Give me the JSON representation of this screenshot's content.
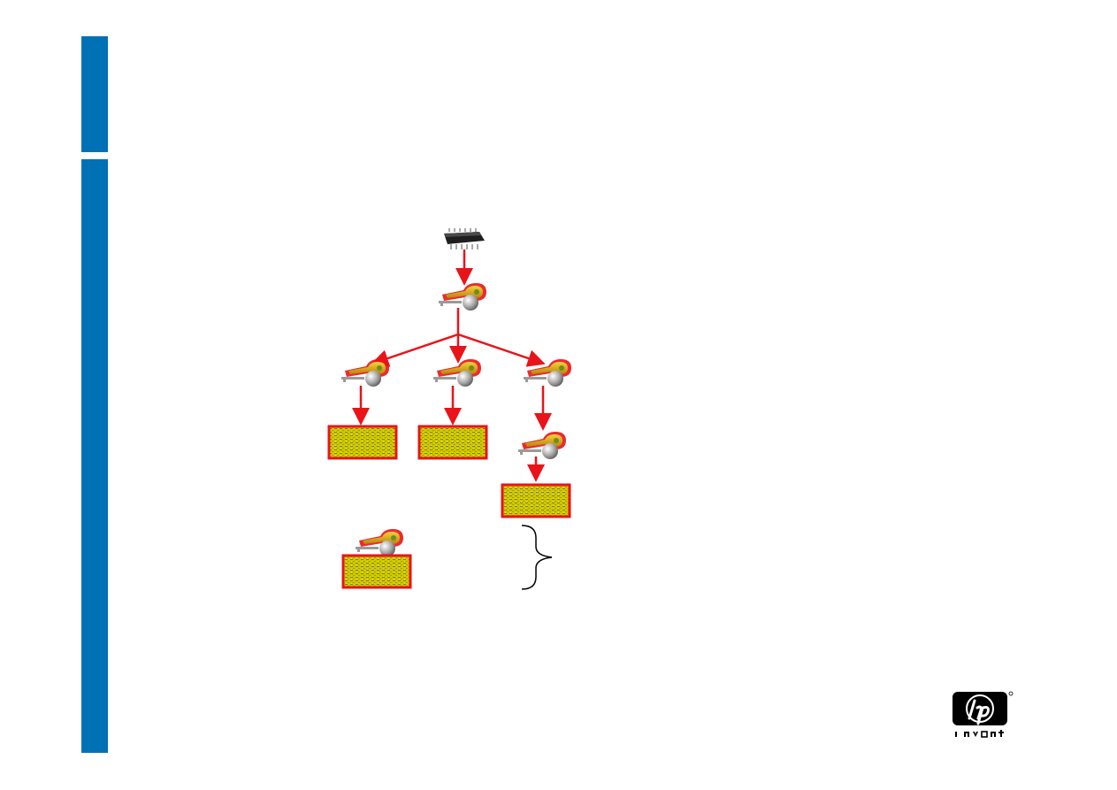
{
  "slide": {
    "accent_color": "#0071b5",
    "arrow_color": "#e8141a",
    "box_fill_color": "#c9c400",
    "box_border_color": "#e8141a"
  },
  "diagram": {
    "nodes": [
      {
        "id": "root-chip",
        "icon": "chip-icon"
      },
      {
        "id": "root-key",
        "icon": "key-icon"
      },
      {
        "id": "key-left",
        "icon": "key-icon"
      },
      {
        "id": "key-middle",
        "icon": "key-icon"
      },
      {
        "id": "key-right",
        "icon": "key-icon"
      },
      {
        "id": "key-right-child",
        "icon": "key-icon"
      },
      {
        "id": "box-left",
        "icon": "encrypted-data-box"
      },
      {
        "id": "box-middle",
        "icon": "encrypted-data-box"
      },
      {
        "id": "box-right",
        "icon": "encrypted-data-box"
      },
      {
        "id": "legend-key",
        "icon": "key-icon"
      },
      {
        "id": "legend-box",
        "icon": "encrypted-data-box"
      },
      {
        "id": "brace",
        "icon": "curly-brace-icon"
      }
    ],
    "edges": [
      [
        "root-chip",
        "root-key"
      ],
      [
        "root-key",
        "key-left"
      ],
      [
        "root-key",
        "key-middle"
      ],
      [
        "root-key",
        "key-right"
      ],
      [
        "key-left",
        "box-left"
      ],
      [
        "key-middle",
        "box-middle"
      ],
      [
        "key-right",
        "key-right-child"
      ],
      [
        "key-right-child",
        "box-right"
      ]
    ]
  },
  "logo": {
    "brand": "hp",
    "tagline": "invent",
    "icon": "hp-invent-logo"
  }
}
